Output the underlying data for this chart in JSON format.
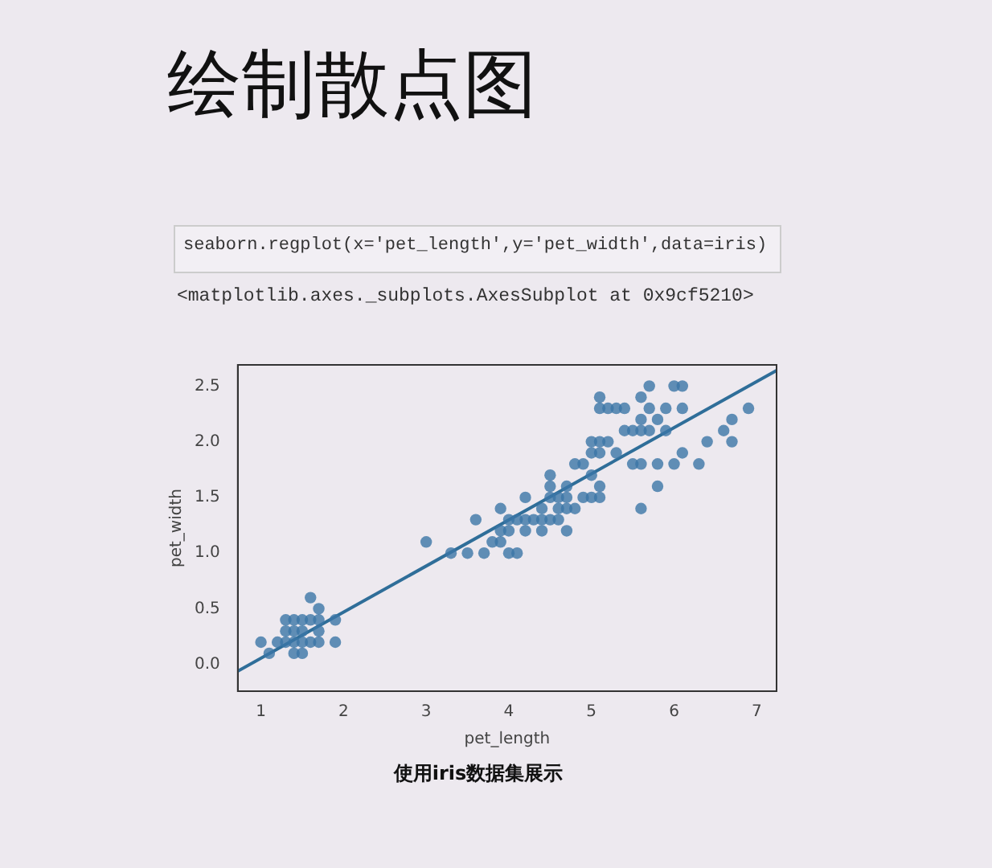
{
  "chart_data": {
    "type": "scatter",
    "title": "绘制散点图",
    "subtitle": "seaborn.regplot(x='pet_length',y='pet_width',data=iris)",
    "annotations": [
      "<matplotlib.axes._subplots.AxesSubplot at 0x9cf5210>",
      "使用iris数据集展示"
    ],
    "xlabel": "pet_length",
    "ylabel": "pet_width",
    "xlim": [
      0.72,
      7.24
    ],
    "ylim": [
      -0.24,
      2.69
    ],
    "xticks": [
      1,
      2,
      3,
      4,
      5,
      6,
      7
    ],
    "yticks": [
      {
        "value": 0,
        "label": "0.0"
      },
      {
        "value": 0.5,
        "label": "0.5"
      },
      {
        "value": 1,
        "label": "1.0"
      },
      {
        "value": 1.5,
        "label": "1.5"
      },
      {
        "value": 2,
        "label": "2.0"
      },
      {
        "value": 2.5,
        "label": "2.5"
      }
    ],
    "grid": false,
    "legend": false,
    "marker": "circle",
    "series": [
      {
        "type": "scatter",
        "color": "#3b75a6",
        "x": [
          1.0,
          1.1,
          1.2,
          1.3,
          1.3,
          1.3,
          1.4,
          1.4,
          1.4,
          1.5,
          1.5,
          1.5,
          1.5,
          1.6,
          1.6,
          1.6,
          1.7,
          1.7,
          1.7,
          1.7,
          1.9,
          1.9,
          1.4,
          3.0,
          3.3,
          3.5,
          3.6,
          3.7,
          3.8,
          3.9,
          3.9,
          3.9,
          4.0,
          4.0,
          4.0,
          4.1,
          4.1,
          4.2,
          4.2,
          4.2,
          4.3,
          4.4,
          4.4,
          4.4,
          4.5,
          4.5,
          4.5,
          4.5,
          4.6,
          4.6,
          4.6,
          4.7,
          4.7,
          4.7,
          4.7,
          4.8,
          4.8,
          4.9,
          5.0,
          5.1,
          4.9,
          5.0,
          5.0,
          5.0,
          5.1,
          5.1,
          5.1,
          5.1,
          5.1,
          5.2,
          5.2,
          5.3,
          5.3,
          5.4,
          5.4,
          5.5,
          5.5,
          5.6,
          5.6,
          5.6,
          5.6,
          5.6,
          5.7,
          5.7,
          5.7,
          5.8,
          5.8,
          5.8,
          5.9,
          5.9,
          6.0,
          6.0,
          6.1,
          6.1,
          6.1,
          6.3,
          6.4,
          6.6,
          6.7,
          6.7,
          6.9
        ],
        "values": [
          0.2,
          0.1,
          0.2,
          0.2,
          0.3,
          0.4,
          0.2,
          0.1,
          0.3,
          0.2,
          0.1,
          0.4,
          0.3,
          0.2,
          0.6,
          0.4,
          0.2,
          0.5,
          0.3,
          0.4,
          0.2,
          0.4,
          0.4,
          1.1,
          1.0,
          1.0,
          1.3,
          1.0,
          1.1,
          1.1,
          1.2,
          1.4,
          1.0,
          1.3,
          1.2,
          1.0,
          1.3,
          1.3,
          1.2,
          1.5,
          1.3,
          1.4,
          1.3,
          1.2,
          1.5,
          1.3,
          1.7,
          1.6,
          1.5,
          1.3,
          1.4,
          1.4,
          1.2,
          1.5,
          1.6,
          1.4,
          1.8,
          1.5,
          1.7,
          1.6,
          1.8,
          1.5,
          2.0,
          1.9,
          1.5,
          1.9,
          2.0,
          2.3,
          2.4,
          2.0,
          2.3,
          1.9,
          2.3,
          2.1,
          2.3,
          2.1,
          1.8,
          1.4,
          1.8,
          2.1,
          2.2,
          2.4,
          2.1,
          2.3,
          2.5,
          1.8,
          2.2,
          1.6,
          2.1,
          2.3,
          1.8,
          2.5,
          1.9,
          2.3,
          2.5,
          1.8,
          2.0,
          2.1,
          2.0,
          2.2,
          2.3
        ]
      },
      {
        "type": "line",
        "color": "#2f6e99",
        "marker": "none",
        "x": [
          0.72,
          7.24
        ],
        "values": [
          -0.06,
          2.64
        ]
      }
    ]
  }
}
